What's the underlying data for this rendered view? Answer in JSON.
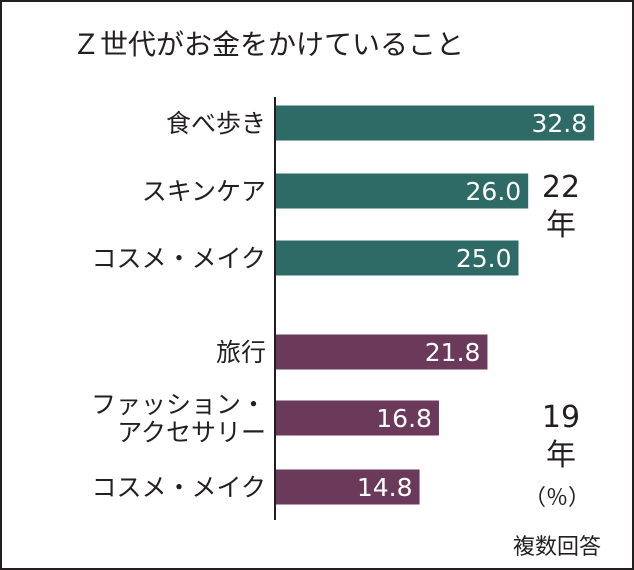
{
  "chart_data": {
    "type": "bar",
    "orientation": "horizontal",
    "title": "Ｚ世代がお金をかけていること",
    "unit": "（％）",
    "note": "複数回答",
    "xlim": [
      0,
      35
    ],
    "groups": [
      {
        "label": "22年",
        "label_lines": [
          "22",
          "年"
        ],
        "color": "#2e6b66",
        "categories": [
          {
            "lines": [
              "食べ歩き"
            ],
            "value": 32.8,
            "value_label": "32.8"
          },
          {
            "lines": [
              "スキンケア"
            ],
            "value": 26.0,
            "value_label": "26.0"
          },
          {
            "lines": [
              "コスメ・メイク"
            ],
            "value": 25.0,
            "value_label": "25.0"
          }
        ]
      },
      {
        "label": "19年",
        "label_lines": [
          "19",
          "年"
        ],
        "color": "#6b3a5b",
        "categories": [
          {
            "lines": [
              "旅行"
            ],
            "value": 21.8,
            "value_label": "21.8"
          },
          {
            "lines": [
              "ファッション・",
              "アクセサリー"
            ],
            "value": 16.8,
            "value_label": "16.8"
          },
          {
            "lines": [
              "コスメ・メイク"
            ],
            "value": 14.8,
            "value_label": "14.8"
          }
        ]
      }
    ]
  }
}
